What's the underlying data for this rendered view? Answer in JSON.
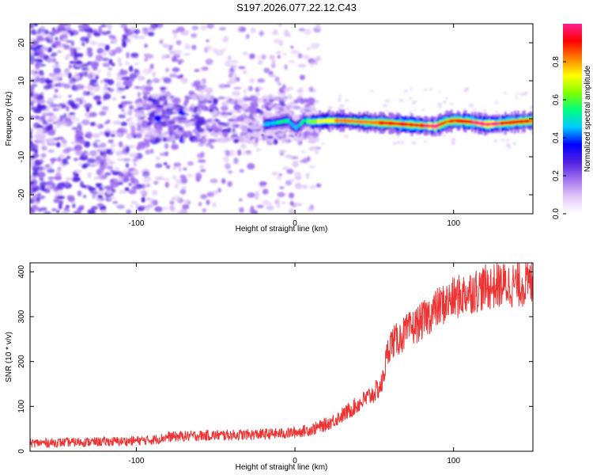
{
  "figure_title": "S197.2026.077.22.12.C43",
  "chart_data": [
    {
      "type": "heatmap",
      "title": "",
      "xlabel": "Height of straight line (km)",
      "ylabel": "Frequency (Hz)",
      "xlim": [
        -167,
        150
      ],
      "ylim": [
        -25,
        25
      ],
      "x_ticks": [
        -100,
        0,
        100
      ],
      "y_ticks": [
        -20,
        -10,
        0,
        10,
        20
      ],
      "colorbar": {
        "label": "Normalized spectral amplitude",
        "range": [
          0,
          1
        ],
        "ticks": [
          0.0,
          0.2,
          0.4,
          0.6,
          0.8
        ],
        "tick_labels": [
          "0.0",
          "0.2",
          "0.4",
          "0.6",
          "0.8"
        ],
        "colors": [
          "#ffffff",
          "#e0c8f8",
          "#a070f0",
          "#5020e0",
          "#0000ff",
          "#00c8ff",
          "#00ff80",
          "#80ff00",
          "#ffff00",
          "#ff8000",
          "#ff0000",
          "#ff2090"
        ]
      },
      "ridge": {
        "description": "strong narrow-band signal near 0 Hz",
        "x": [
          -20,
          -12,
          -5,
          0,
          5,
          10,
          20,
          30,
          40,
          50,
          60,
          70,
          80,
          88,
          95,
          100,
          110,
          120,
          130,
          140,
          150
        ],
        "frequency_hz": [
          -1.5,
          -1.0,
          -0.5,
          -2.5,
          -0.5,
          -0.8,
          -0.5,
          -0.5,
          -0.8,
          -1.0,
          -1.2,
          -1.5,
          -1.8,
          -2.0,
          -0.8,
          -0.5,
          -0.8,
          -1.5,
          -1.2,
          -0.8,
          -0.5
        ],
        "amplitude": [
          0.45,
          0.5,
          0.5,
          0.45,
          0.55,
          0.65,
          0.75,
          0.8,
          0.8,
          0.85,
          0.9,
          0.95,
          0.95,
          1.0,
          0.85,
          0.9,
          0.95,
          1.0,
          0.95,
          0.9,
          0.85
        ]
      },
      "noise_region": {
        "description": "broadband low-amplitude noise below ~0 km height",
        "x_range": [
          -167,
          0
        ],
        "typical_amplitude": 0.25
      }
    },
    {
      "type": "line",
      "title": "",
      "xlabel": "Height of straight line (km)",
      "ylabel": "SNR (10 * v/v)",
      "xlim": [
        -167,
        150
      ],
      "ylim": [
        0,
        420
      ],
      "x_ticks": [
        -100,
        0,
        100
      ],
      "y_ticks": [
        0,
        100,
        200,
        300,
        400
      ],
      "series": [
        {
          "name": "SNR",
          "color": "#ee3333",
          "x": [
            -167,
            -140,
            -110,
            -90,
            -80,
            -60,
            -40,
            -20,
            -5,
            0,
            10,
            20,
            30,
            40,
            50,
            55,
            58,
            60,
            65,
            70,
            80,
            90,
            100,
            110,
            120,
            130,
            140,
            150
          ],
          "y": [
            18,
            20,
            22,
            25,
            32,
            35,
            36,
            38,
            40,
            42,
            48,
            60,
            80,
            105,
            130,
            150,
            215,
            240,
            250,
            265,
            290,
            320,
            340,
            355,
            365,
            370,
            372,
            375
          ]
        }
      ]
    }
  ]
}
